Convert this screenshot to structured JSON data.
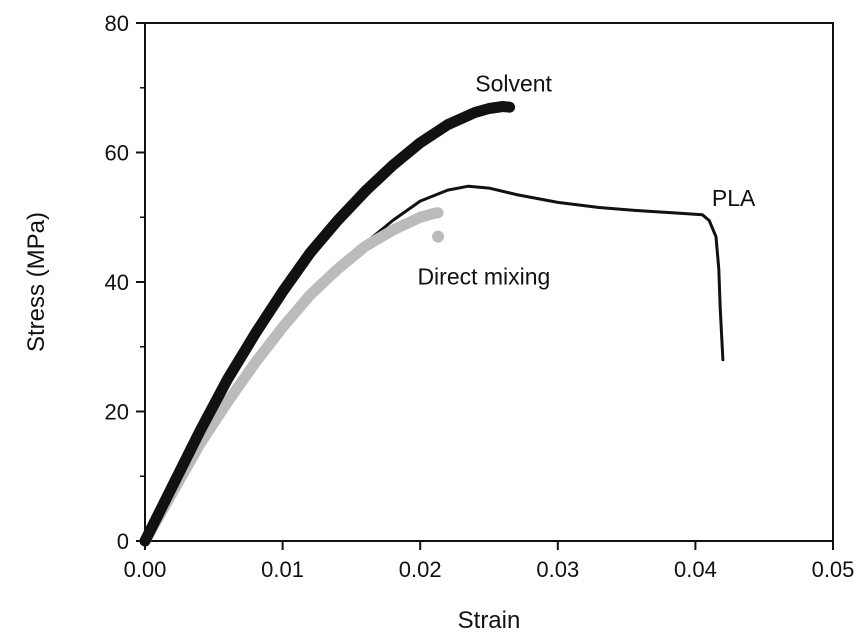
{
  "chart_data": {
    "type": "line",
    "title": "",
    "xlabel": "Strain",
    "ylabel": "Stress (MPa)",
    "xlim": [
      0,
      0.05
    ],
    "ylim": [
      0,
      80
    ],
    "x_ticks": [
      {
        "value": 0.0,
        "label": "0.00"
      },
      {
        "value": 0.01,
        "label": "0.01"
      },
      {
        "value": 0.02,
        "label": "0.02"
      },
      {
        "value": 0.03,
        "label": "0.03"
      },
      {
        "value": 0.04,
        "label": "0.04"
      },
      {
        "value": 0.05,
        "label": "0.05"
      }
    ],
    "y_ticks": [
      {
        "value": 0,
        "label": "0"
      },
      {
        "value": 20,
        "label": "20"
      },
      {
        "value": 40,
        "label": "40"
      },
      {
        "value": 60,
        "label": "60"
      },
      {
        "value": 80,
        "label": "80"
      }
    ],
    "grid": false,
    "series": [
      {
        "name": "PLA",
        "color": "#111111",
        "style": "thin-line",
        "x": [
          0,
          0.002,
          0.004,
          0.006,
          0.008,
          0.01,
          0.012,
          0.014,
          0.016,
          0.018,
          0.02,
          0.022,
          0.0235,
          0.025,
          0.027,
          0.03,
          0.033,
          0.036,
          0.039,
          0.0405,
          0.041,
          0.0415,
          0.0417,
          0.0418,
          0.042
        ],
        "y": [
          0,
          7.5,
          14.5,
          21,
          27,
          32.5,
          37.5,
          42,
          46,
          49.5,
          52.5,
          54.2,
          54.8,
          54.5,
          53.5,
          52.3,
          51.5,
          51.0,
          50.6,
          50.4,
          49.5,
          47,
          42,
          36,
          28
        ]
      },
      {
        "name": "Solvent",
        "color": "#111111",
        "style": "thick-line",
        "x": [
          0,
          0.002,
          0.004,
          0.006,
          0.008,
          0.01,
          0.012,
          0.014,
          0.016,
          0.018,
          0.02,
          0.022,
          0.024,
          0.025,
          0.026,
          0.0265
        ],
        "y": [
          0,
          8.5,
          17,
          25,
          32,
          38.5,
          44.5,
          49.5,
          54,
          58,
          61.5,
          64.3,
          66.2,
          66.8,
          67.1,
          67
        ]
      },
      {
        "name": "Direct mixing",
        "color": "#bbbbbb",
        "style": "thick-line",
        "x": [
          0,
          0.002,
          0.004,
          0.006,
          0.008,
          0.01,
          0.012,
          0.014,
          0.016,
          0.018,
          0.02,
          0.021,
          0.0213
        ],
        "y": [
          0,
          7.5,
          15,
          21.5,
          27.5,
          33,
          38,
          42,
          45.5,
          48,
          50,
          50.6,
          50.7
        ],
        "outlier": {
          "x": 0.0213,
          "y": 47
        }
      }
    ],
    "annotations": [
      {
        "text": "Solvent",
        "x": 0.024,
        "y": 69.4
      },
      {
        "text": "PLA",
        "x": 0.0412,
        "y": 51.7
      },
      {
        "text": "Direct mixing",
        "x": 0.0198,
        "y": 39.6
      }
    ]
  }
}
